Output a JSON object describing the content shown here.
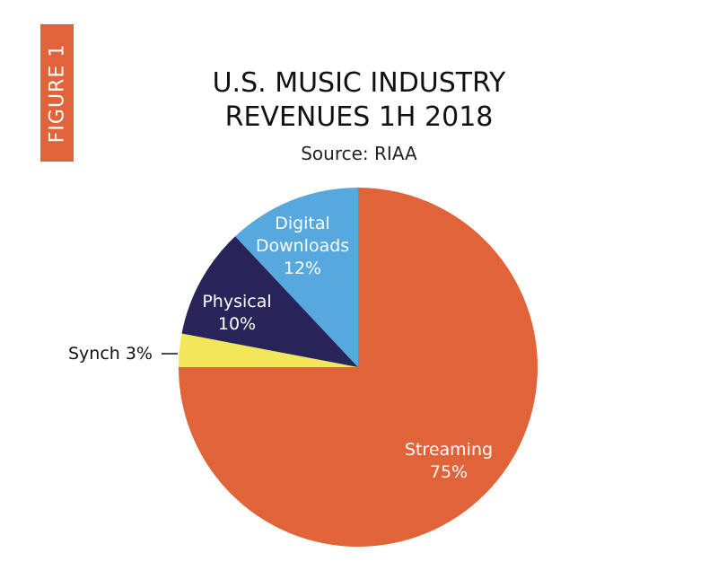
{
  "figure_tab": {
    "label": "FIGURE 1"
  },
  "chart_data": {
    "type": "pie",
    "title_lines": [
      "U.S. MUSIC INDUSTRY",
      "REVENUES 1H 2018"
    ],
    "subtitle": "Source: RIAA",
    "slices": [
      {
        "label_lines": [
          "Streaming",
          "75%"
        ],
        "value": 75,
        "color": "#E0633A",
        "label_color": "#ffffff"
      },
      {
        "label_lines": [
          "Synch 3%"
        ],
        "value": 3,
        "color": "#F2E75A",
        "label_color": "#111111"
      },
      {
        "label_lines": [
          "Physical",
          "10%"
        ],
        "value": 10,
        "color": "#262459",
        "label_color": "#ffffff"
      },
      {
        "label_lines": [
          "Digital",
          "Downloads",
          "12%"
        ],
        "value": 12,
        "color": "#56A8DE",
        "label_color": "#ffffff"
      }
    ]
  }
}
